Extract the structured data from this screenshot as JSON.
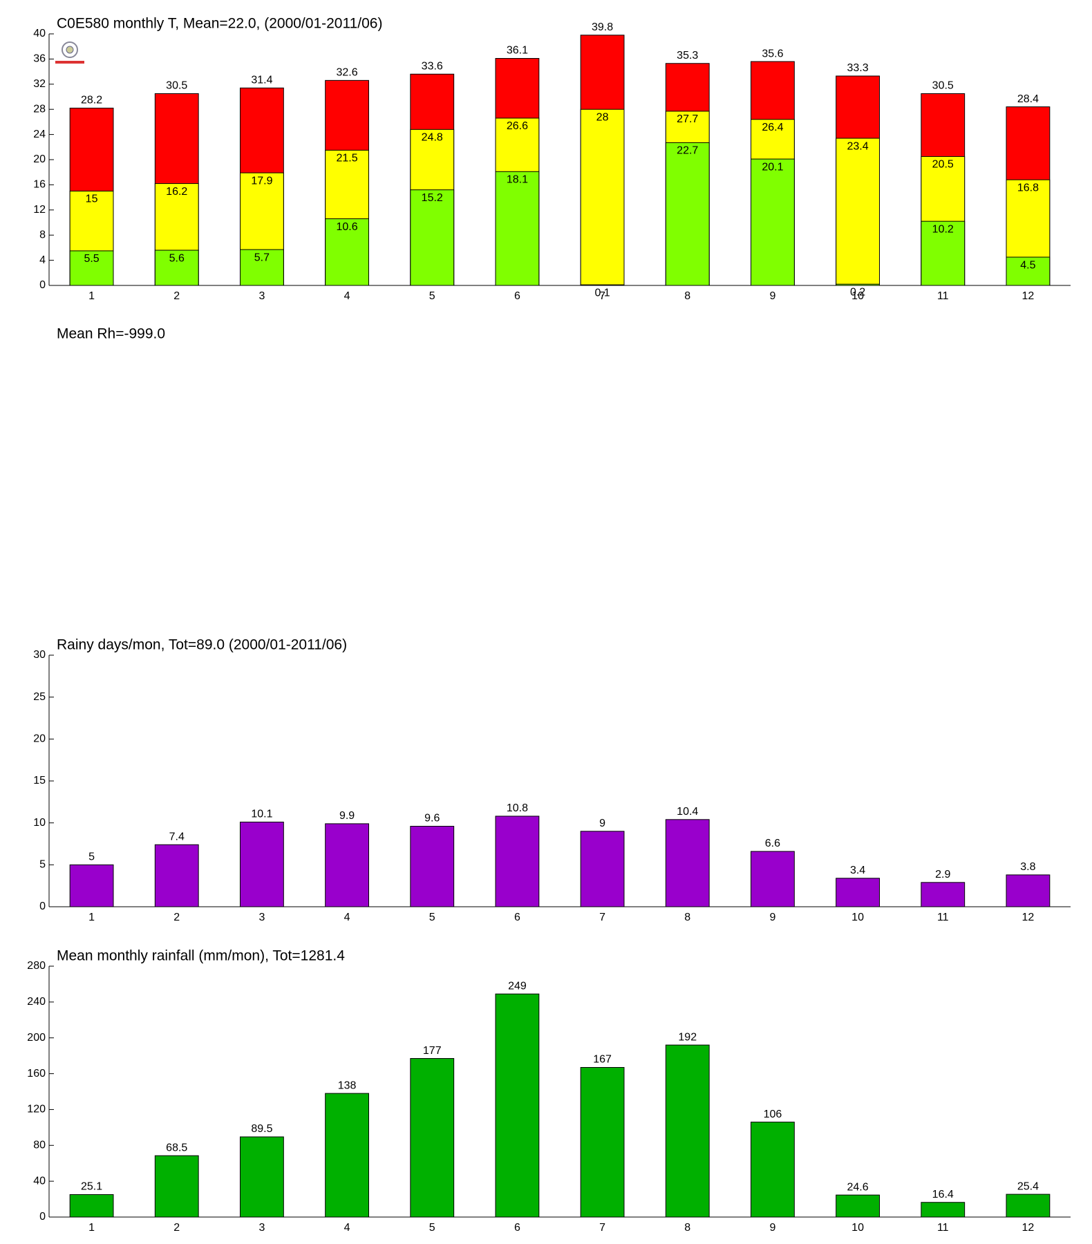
{
  "chart_data": [
    {
      "type": "overlay-bar",
      "title": "C0E580 monthly T, Mean=22.0, (2000/01-2011/06)",
      "categories": [
        "1",
        "2",
        "3",
        "4",
        "5",
        "6",
        "7",
        "8",
        "9",
        "10",
        "11",
        "12"
      ],
      "series": [
        {
          "color": "#80ff00",
          "values": [
            5.5,
            5.6,
            5.7,
            10.6,
            15.2,
            18.1,
            0.1,
            22.7,
            20.1,
            0.2,
            10.2,
            4.5
          ]
        },
        {
          "color": "#ffff00",
          "values": [
            15,
            16.2,
            17.9,
            21.5,
            24.8,
            26.6,
            28,
            27.7,
            26.4,
            23.4,
            20.5,
            16.8
          ]
        },
        {
          "color": "#ff0000",
          "values": [
            28.2,
            30.5,
            31.4,
            32.6,
            33.6,
            36.1,
            39.8,
            35.3,
            35.6,
            33.3,
            30.5,
            28.4
          ]
        }
      ],
      "ylim": [
        0,
        40
      ],
      "yticks": [
        0,
        4,
        8,
        12,
        16,
        20,
        24,
        28,
        32,
        36,
        40
      ]
    },
    {
      "type": "empty",
      "title": "Mean Rh=-999.0"
    },
    {
      "type": "bar",
      "title": "Rainy days/mon, Tot=89.0 (2000/01-2011/06)",
      "categories": [
        "1",
        "2",
        "3",
        "4",
        "5",
        "6",
        "7",
        "8",
        "9",
        "10",
        "11",
        "12"
      ],
      "values": [
        5,
        7.4,
        10.1,
        9.9,
        9.6,
        10.8,
        9,
        10.4,
        6.6,
        3.4,
        2.9,
        3.8
      ],
      "color": "#9900cc",
      "ylim": [
        0,
        30
      ],
      "yticks": [
        0,
        5,
        10,
        15,
        20,
        25,
        30
      ]
    },
    {
      "type": "bar",
      "title": "Mean monthly rainfall (mm/mon), Tot=1281.4",
      "categories": [
        "1",
        "2",
        "3",
        "4",
        "5",
        "6",
        "7",
        "8",
        "9",
        "10",
        "11",
        "12"
      ],
      "values": [
        25.1,
        68.5,
        89.5,
        138,
        177,
        249,
        167,
        192,
        106,
        24.6,
        16.4,
        25.4
      ],
      "color": "#00b000",
      "ylim": [
        0,
        280
      ],
      "yticks": [
        0,
        40,
        80,
        120,
        160,
        200,
        240,
        280
      ]
    }
  ]
}
